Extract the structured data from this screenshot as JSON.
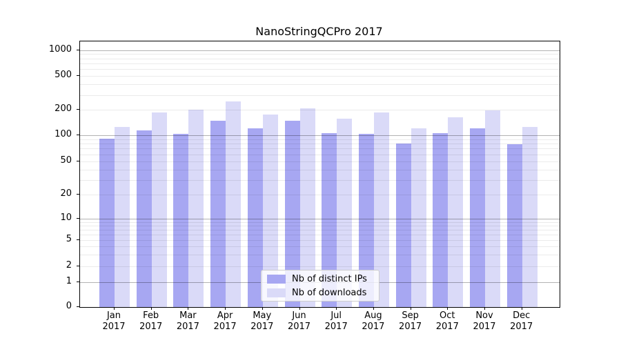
{
  "chart_data": {
    "type": "bar",
    "title": "NanoStringQCPro 2017",
    "categories": [
      "Jan",
      "Feb",
      "Mar",
      "Apr",
      "May",
      "Jun",
      "Jul",
      "Aug",
      "Sep",
      "Oct",
      "Nov",
      "Dec"
    ],
    "year_label": "2017",
    "series": [
      {
        "name": "Nb of distinct IPs",
        "color": "#a7a7f2",
        "values": [
          92,
          115,
          104,
          150,
          122,
          149,
          105,
          103,
          80,
          105,
          122,
          79
        ]
      },
      {
        "name": "Nb of downloads",
        "color": "#dadaf8",
        "values": [
          125,
          188,
          202,
          254,
          176,
          210,
          158,
          185,
          120,
          164,
          196,
          125
        ]
      }
    ],
    "yticks": [
      0,
      1,
      2,
      5,
      10,
      20,
      50,
      100,
      200,
      500,
      1000
    ],
    "ylim": [
      0,
      1000
    ],
    "yscale": "symlog",
    "grid": true,
    "legend_position": "lower center",
    "colors": {
      "major_gridline": "#b5b5b5",
      "minor_gridline": "#ececec",
      "axis": "#000000"
    }
  }
}
